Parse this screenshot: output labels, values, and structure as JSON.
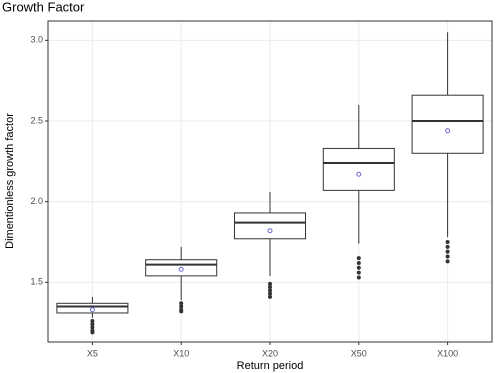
{
  "chart_data": {
    "type": "box",
    "title": "Growth Factor",
    "x_label": "Return period",
    "y_label": "Dimentionless growth factor",
    "categories": [
      "X5",
      "X10",
      "X20",
      "X50",
      "X100"
    ],
    "whisker_low": [
      1.28,
      1.39,
      1.54,
      1.74,
      1.78
    ],
    "q1": [
      1.31,
      1.54,
      1.77,
      2.07,
      2.3
    ],
    "median": [
      1.35,
      1.61,
      1.87,
      2.24,
      2.5
    ],
    "q3": [
      1.37,
      1.64,
      1.93,
      2.33,
      2.66
    ],
    "whisker_high": [
      1.41,
      1.72,
      2.06,
      2.6,
      3.05
    ],
    "mean": [
      1.33,
      1.58,
      1.82,
      2.17,
      2.44
    ],
    "outliers": [
      [
        1.26,
        1.24,
        1.22,
        1.2,
        1.19
      ],
      [
        1.37,
        1.35,
        1.33,
        1.32
      ],
      [
        1.49,
        1.47,
        1.45,
        1.43,
        1.41
      ],
      [
        1.65,
        1.62,
        1.59,
        1.56,
        1.53
      ],
      [
        1.75,
        1.72,
        1.69,
        1.66,
        1.63
      ]
    ],
    "box_color": "#333333",
    "mean_color": "#6b6bd6",
    "ylim": [
      1.13,
      3.12
    ],
    "yticks": [
      1.5,
      {
        "value": 2,
        "label": "2.0"
      },
      2.5,
      {
        "value": 3,
        "label": "3.0"
      }
    ],
    "grid": true
  }
}
